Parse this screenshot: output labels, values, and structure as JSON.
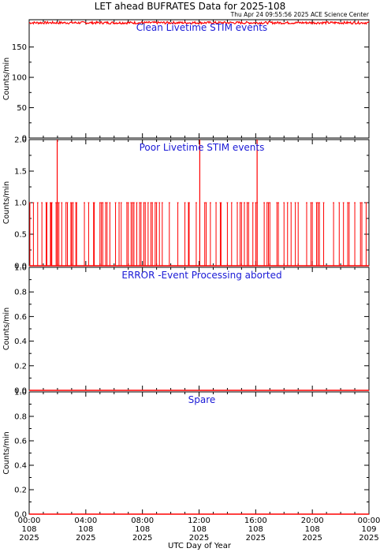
{
  "title": "LET ahead BUFRATES Data for 2025-108",
  "timestamp": "Thu Apr 24 09:55:56 2025 ACE Science Center",
  "xlabel": "UTC Day of Year",
  "colors": {
    "data": "#ff0000",
    "title_text": "#1a1ad6",
    "axes": "#000000"
  },
  "chart_data": [
    {
      "type": "line",
      "title": "Clean Livetime STIM events",
      "ylabel": "Counts/min",
      "ylim": [
        0,
        195
      ],
      "yticks": [
        0,
        50,
        100,
        150
      ],
      "ytick_labels": [
        "0",
        "50",
        "100",
        "150"
      ],
      "series": [
        {
          "baseline": 190,
          "jitter": 2
        }
      ]
    },
    {
      "type": "line",
      "title": "Poor Livetime STIM events",
      "ylabel": "Counts/min",
      "ylim": [
        0,
        2
      ],
      "yticks": [
        0,
        0.5,
        1,
        1.5,
        2
      ],
      "ytick_labels": [
        "0.0",
        "0.5",
        "1.0",
        "1.5",
        "2.0"
      ],
      "series": [
        {
          "baseline": 0,
          "spikes_value_1_hours": [
            0.05,
            0.3,
            0.6,
            0.9,
            1.2,
            1.25,
            1.5,
            1.55,
            1.6,
            1.9,
            2.0,
            2.1,
            2.3,
            2.6,
            2.7,
            2.95,
            3.0,
            3.1,
            3.3,
            3.35,
            3.9,
            4.2,
            4.55,
            4.6,
            5.0,
            5.1,
            5.2,
            5.4,
            5.5,
            5.7,
            6.1,
            6.35,
            6.5,
            6.9,
            7.0,
            7.2,
            7.3,
            7.4,
            7.6,
            7.8,
            7.9,
            8.1,
            8.2,
            8.4,
            8.6,
            8.7,
            8.9,
            9.0,
            9.2,
            9.4,
            9.9,
            10.5,
            11.0,
            11.25,
            11.3,
            11.8,
            12.4,
            12.5,
            12.8,
            13.2,
            13.5,
            13.55,
            14.0,
            14.3,
            14.7,
            14.9,
            15.0,
            15.2,
            15.4,
            15.5,
            15.8,
            16.0,
            16.1,
            16.6,
            16.8,
            16.9,
            17.0,
            17.5,
            17.6,
            18.0,
            18.25,
            18.5,
            18.8,
            19.0,
            19.6,
            19.9,
            20.0,
            20.3,
            20.4,
            20.5,
            20.8,
            21.5,
            21.9,
            22.2,
            22.5,
            22.6,
            23.0,
            23.4,
            23.5,
            23.8
          ],
          "spikes_value_2_hours": [
            1.98,
            12.05,
            16.1
          ]
        }
      ]
    },
    {
      "type": "line",
      "title": "ERROR -Event Processing aborted",
      "ylabel": "Counts/min",
      "ylim": [
        0,
        1
      ],
      "yticks": [
        0,
        0.2,
        0.4,
        0.6,
        0.8,
        1.0
      ],
      "ytick_labels": [
        "0.0",
        "0.2",
        "0.4",
        "0.6",
        "0.8",
        "1.0"
      ],
      "series": [
        {
          "baseline": 0
        }
      ]
    },
    {
      "type": "line",
      "title": "Spare",
      "ylabel": "Counts/min",
      "ylim": [
        0,
        1
      ],
      "yticks": [
        0,
        0.2,
        0.4,
        0.6,
        0.8,
        1.0
      ],
      "ytick_labels": [
        "0.0",
        "0.2",
        "0.4",
        "0.6",
        "0.8",
        "1.0"
      ],
      "series": [
        {
          "baseline": 0
        }
      ]
    }
  ],
  "x_axis": {
    "range_hours": [
      0,
      24
    ],
    "ticks": [
      {
        "hour": 0,
        "time": "00:00",
        "doy": "108",
        "year": "2025"
      },
      {
        "hour": 4,
        "time": "04:00",
        "doy": "108",
        "year": "2025"
      },
      {
        "hour": 8,
        "time": "08:00",
        "doy": "108",
        "year": "2025"
      },
      {
        "hour": 12,
        "time": "12:00",
        "doy": "108",
        "year": "2025"
      },
      {
        "hour": 16,
        "time": "16:00",
        "doy": "108",
        "year": "2025"
      },
      {
        "hour": 20,
        "time": "20:00",
        "doy": "108",
        "year": "2025"
      },
      {
        "hour": 24,
        "time": "00:00",
        "doy": "109",
        "year": "2025"
      }
    ]
  }
}
